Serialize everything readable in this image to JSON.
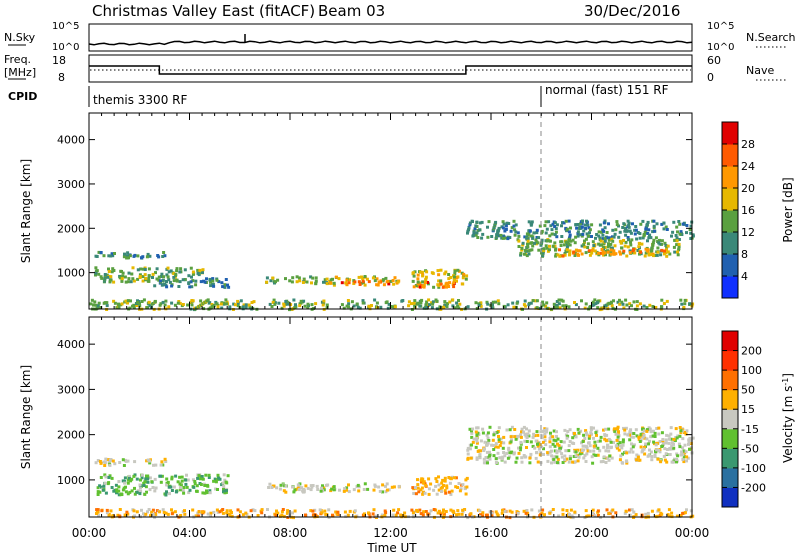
{
  "header": {
    "title": "Christmas Valley East (fitACF)",
    "beam": "Beam 03",
    "date": "30/Dec/2016"
  },
  "strip": {
    "nsky_label": "N.Sky",
    "nsearch_label": "N.Search",
    "nsky_ticks": [
      "10^5",
      "10^0"
    ],
    "nsearch_ticks": [
      "10^5",
      "10^0"
    ],
    "freq_label_1": "Freq.",
    "freq_label_2": "[MHz]",
    "freq_ticks": [
      "18",
      "8"
    ],
    "nave_label": "Nave",
    "nave_ticks": [
      "60",
      "0"
    ],
    "cpid_label": "CPID",
    "cpid_1": "themis 3300 RF",
    "cpid_2": "normal (fast) 151 RF",
    "freq_steps": [
      {
        "t": 0.0,
        "v": 14
      },
      {
        "t": 2.8,
        "v": 10
      },
      {
        "t": 15.0,
        "v": 14
      },
      {
        "t": 24.0,
        "v": 14
      }
    ],
    "cpid_switch_time": 18.0
  },
  "chart_data": [
    {
      "type": "heatmap",
      "ylabel": "Slant Range [km]",
      "xlabel": "Time UT",
      "xlim": [
        0,
        24
      ],
      "ylim": [
        180,
        4600
      ],
      "x_ticks": [
        "00:00",
        "04:00",
        "08:00",
        "12:00",
        "16:00",
        "20:00",
        "00:00"
      ],
      "y_ticks": [
        1000,
        2000,
        3000,
        4000
      ],
      "colorbar": {
        "label": "Power [dB]",
        "ticks": [
          "4",
          "8",
          "12",
          "16",
          "20",
          "24",
          "28"
        ],
        "levels": [
          0,
          4,
          8,
          12,
          16,
          20,
          24,
          28,
          32
        ],
        "colors": [
          "#1030ff",
          "#2060b0",
          "#3a8878",
          "#5aa040",
          "#e6b800",
          "#ff9800",
          "#ff5a00",
          "#e00000"
        ]
      },
      "patches": [
        {
          "t0": 0.2,
          "t1": 3.0,
          "r0": 1350,
          "r1": 1500,
          "level": 2
        },
        {
          "t0": 0.2,
          "t1": 4.5,
          "r0": 820,
          "r1": 1150,
          "level": 3
        },
        {
          "t0": 2.5,
          "t1": 5.5,
          "r0": 700,
          "r1": 900,
          "level": 2
        },
        {
          "t0": 7.0,
          "t1": 9.6,
          "r0": 780,
          "r1": 950,
          "level": 3
        },
        {
          "t0": 9.5,
          "t1": 12.3,
          "r0": 750,
          "r1": 950,
          "level": 4
        },
        {
          "t0": 10.0,
          "t1": 12.0,
          "r0": 760,
          "r1": 840,
          "level": 6
        },
        {
          "t0": 12.8,
          "t1": 15.0,
          "r0": 700,
          "r1": 1100,
          "level": 4
        },
        {
          "t0": 13.0,
          "t1": 14.5,
          "r0": 700,
          "r1": 820,
          "level": 6
        },
        {
          "t0": 15.0,
          "t1": 24.0,
          "r0": 1800,
          "r1": 2200,
          "level": 2
        },
        {
          "t0": 17.0,
          "t1": 23.6,
          "r0": 1400,
          "r1": 1800,
          "level": 3
        },
        {
          "t0": 18.5,
          "t1": 23.0,
          "r0": 1400,
          "r1": 1560,
          "level": 5
        },
        {
          "t0": 0.0,
          "t1": 24.0,
          "r0": 200,
          "r1": 420,
          "level": 3
        }
      ]
    },
    {
      "type": "heatmap",
      "ylabel": "Slant Range [km]",
      "xlabel": "Time UT",
      "xlim": [
        0,
        24
      ],
      "ylim": [
        180,
        4600
      ],
      "x_ticks": [
        "00:00",
        "04:00",
        "08:00",
        "12:00",
        "16:00",
        "20:00",
        "00:00"
      ],
      "y_ticks": [
        1000,
        2000,
        3000,
        4000
      ],
      "colorbar": {
        "label": "Velocity [m s^-1]",
        "ticks": [
          "200",
          "100",
          "50",
          "15",
          "-15",
          "-50",
          "-100",
          "-200"
        ],
        "colors": [
          "#1030c0",
          "#2a70a0",
          "#3a9870",
          "#60c030",
          "#c8c8c0",
          "#ffb000",
          "#ff7000",
          "#ff3000",
          "#e00000"
        ]
      },
      "patches": [
        {
          "t0": 0.2,
          "t1": 3.0,
          "r0": 1350,
          "r1": 1500,
          "level": 4
        },
        {
          "t0": 0.2,
          "t1": 5.5,
          "r0": 700,
          "r1": 1150,
          "level": 3
        },
        {
          "t0": 7.0,
          "t1": 12.3,
          "r0": 760,
          "r1": 950,
          "level": 4
        },
        {
          "t0": 12.8,
          "t1": 15.0,
          "r0": 700,
          "r1": 1100,
          "level": 5
        },
        {
          "t0": 15.0,
          "t1": 24.0,
          "r0": 1400,
          "r1": 2200,
          "level": 4
        },
        {
          "t0": 0.0,
          "t1": 24.0,
          "r0": 200,
          "r1": 380,
          "level": 5
        }
      ]
    }
  ]
}
